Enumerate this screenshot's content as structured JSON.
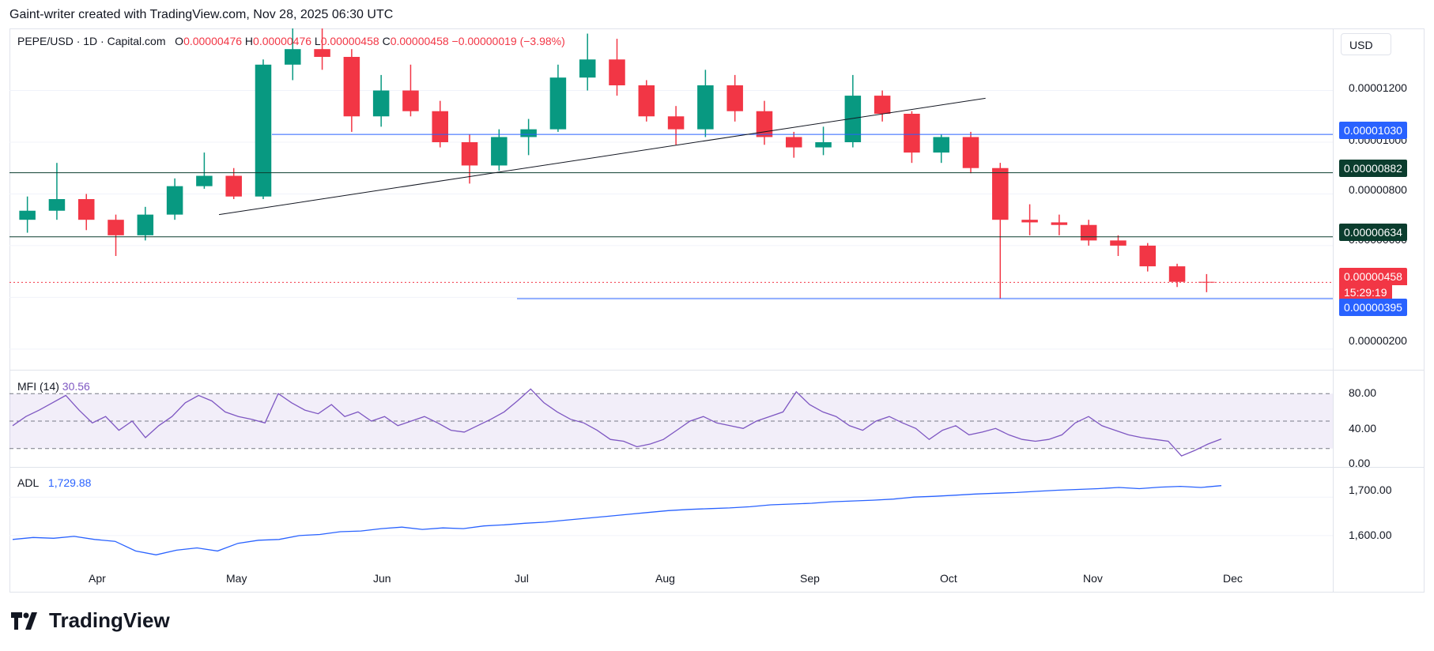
{
  "header": {
    "attribution": "Gaint-writer created with TradingView.com, Nov 28, 2025 06:30 UTC"
  },
  "symbol_line": {
    "symbol": "PEPE/USD · 1D · Capital.com",
    "o_label": "O",
    "o_value": "0.00000476",
    "h_label": "H",
    "h_value": "0.00000476",
    "l_label": "L",
    "l_value": "0.00000458",
    "c_label": "C",
    "c_value": "0.00000458",
    "change": "−0.00000019 (−3.98%)"
  },
  "currency_button": "USD",
  "price_axis": [
    "0.00001200",
    "0.00001000",
    "0.00000800",
    "0.00000600",
    "0.00000200"
  ],
  "price_tags": [
    {
      "label": "0.00001030",
      "color": "#2962ff"
    },
    {
      "label": "0.00000882",
      "color": "#0b3d2e"
    },
    {
      "label": "0.00000634",
      "color": "#0b3d2e"
    },
    {
      "label": "0.00000458",
      "color": "#f23645"
    },
    {
      "label": "15:29:19",
      "color": "#f23645"
    },
    {
      "label": "0.00000395",
      "color": "#2962ff"
    }
  ],
  "mfi": {
    "name": "MFI (14)",
    "value": "30.56",
    "axis": [
      "80.00",
      "40.00",
      "0.00"
    ],
    "color": "#7e57c2"
  },
  "adl": {
    "name": "ADL",
    "value": "1,729.88",
    "axis": [
      "1,700.00",
      "1,600.00"
    ],
    "color": "#2962ff"
  },
  "time_axis": [
    "Apr",
    "May",
    "Jun",
    "Jul",
    "Aug",
    "Sep",
    "Oct",
    "Nov",
    "Dec"
  ],
  "brand": {
    "name": "TradingView"
  },
  "colors": {
    "up": "#089981",
    "down": "#f23645",
    "grid": "#f0f3fa"
  },
  "chart_data": {
    "type": "candlestick",
    "symbol": "PEPE/USD",
    "interval": "1D",
    "x_range": [
      "2025-03-13",
      "2025-11-28"
    ],
    "ylim": [
      1.2e-06,
      1.44e-05
    ],
    "candles_weekly_ohlc": [
      [
        7e-06,
        7.9e-06,
        6.5e-06,
        7.35e-06
      ],
      [
        7.35e-06,
        9.2e-06,
        7e-06,
        7.8e-06
      ],
      [
        7.8e-06,
        8e-06,
        6.6e-06,
        7e-06
      ],
      [
        7e-06,
        7.2e-06,
        5.6e-06,
        6.4e-06
      ],
      [
        6.4e-06,
        7.5e-06,
        6.2e-06,
        7.2e-06
      ],
      [
        7.2e-06,
        8.6e-06,
        7e-06,
        8.3e-06
      ],
      [
        8.3e-06,
        9.6e-06,
        8.2e-06,
        8.7e-06
      ],
      [
        8.7e-06,
        9e-06,
        7.8e-06,
        7.9e-06
      ],
      [
        7.9e-06,
        1.32e-05,
        7.8e-06,
        1.3e-05
      ],
      [
        1.3e-05,
        1.44e-05,
        1.24e-05,
        1.36e-05
      ],
      [
        1.36e-05,
        1.44e-05,
        1.28e-05,
        1.33e-05
      ],
      [
        1.33e-05,
        1.36e-05,
        1.04e-05,
        1.1e-05
      ],
      [
        1.1e-05,
        1.26e-05,
        1.06e-05,
        1.2e-05
      ],
      [
        1.2e-05,
        1.3e-05,
        1.1e-05,
        1.12e-05
      ],
      [
        1.12e-05,
        1.16e-05,
        9.8e-06,
        1e-05
      ],
      [
        1e-05,
        1.03e-05,
        8.4e-06,
        9.1e-06
      ],
      [
        9.1e-06,
        1.05e-05,
        8.9e-06,
        1.02e-05
      ],
      [
        1.02e-05,
        1.09e-05,
        9.5e-06,
        1.05e-05
      ],
      [
        1.05e-05,
        1.3e-05,
        1.04e-05,
        1.25e-05
      ],
      [
        1.25e-05,
        1.42e-05,
        1.2e-05,
        1.32e-05
      ],
      [
        1.32e-05,
        1.4e-05,
        1.18e-05,
        1.22e-05
      ],
      [
        1.22e-05,
        1.24e-05,
        1.08e-05,
        1.1e-05
      ],
      [
        1.1e-05,
        1.14e-05,
        9.9e-06,
        1.05e-05
      ],
      [
        1.05e-05,
        1.28e-05,
        1.02e-05,
        1.22e-05
      ],
      [
        1.22e-05,
        1.26e-05,
        1.08e-05,
        1.12e-05
      ],
      [
        1.12e-05,
        1.16e-05,
        9.9e-06,
        1.02e-05
      ],
      [
        1.02e-05,
        1.04e-05,
        9.4e-06,
        9.8e-06
      ],
      [
        9.8e-06,
        1.06e-05,
        9.5e-06,
        1e-05
      ],
      [
        1e-05,
        1.26e-05,
        9.8e-06,
        1.18e-05
      ],
      [
        1.18e-05,
        1.2e-05,
        1.08e-05,
        1.11e-05
      ],
      [
        1.11e-05,
        1.12e-05,
        9.2e-06,
        9.6e-06
      ],
      [
        9.6e-06,
        1.03e-05,
        9.2e-06,
        1.02e-05
      ],
      [
        1.02e-05,
        1.04e-05,
        8.8e-06,
        9e-06
      ],
      [
        9e-06,
        9.2e-06,
        3.95e-06,
        7e-06
      ],
      [
        7e-06,
        7.6e-06,
        6.4e-06,
        6.9e-06
      ],
      [
        6.9e-06,
        7.2e-06,
        6.4e-06,
        6.8e-06
      ],
      [
        6.8e-06,
        7e-06,
        6e-06,
        6.2e-06
      ],
      [
        6.2e-06,
        6.4e-06,
        5.6e-06,
        6e-06
      ],
      [
        6e-06,
        6.1e-06,
        5e-06,
        5.2e-06
      ],
      [
        5.2e-06,
        5.3e-06,
        4.4e-06,
        4.6e-06
      ],
      [
        4.6e-06,
        4.9e-06,
        4.2e-06,
        4.58e-06
      ]
    ],
    "horizontal_levels": [
      1.03e-05,
      8.82e-06,
      6.34e-06,
      3.95e-06
    ],
    "current_price": 4.58e-06,
    "mfi_values": [
      45,
      55,
      62,
      70,
      78,
      62,
      48,
      55,
      40,
      50,
      32,
      45,
      55,
      70,
      78,
      72,
      60,
      55,
      52,
      48,
      80,
      70,
      62,
      58,
      68,
      55,
      60,
      50,
      55,
      45,
      50,
      55,
      48,
      40,
      38,
      45,
      52,
      60,
      72,
      85,
      70,
      60,
      52,
      48,
      40,
      30,
      28,
      22,
      25,
      30,
      40,
      50,
      55,
      48,
      45,
      42,
      50,
      55,
      60,
      82,
      68,
      60,
      55,
      45,
      40,
      50,
      55,
      48,
      42,
      30,
      40,
      45,
      35,
      38,
      42,
      35,
      30,
      28,
      30,
      35,
      48,
      55,
      45,
      40,
      35,
      32,
      30,
      28,
      12,
      18,
      25,
      30.56
    ],
    "mfi_levels": [
      80,
      50,
      20
    ],
    "mfi_ylim": [
      0,
      100
    ],
    "adl_values": [
      1590,
      1595,
      1593,
      1598,
      1590,
      1585,
      1560,
      1550,
      1562,
      1568,
      1560,
      1580,
      1588,
      1590,
      1600,
      1603,
      1610,
      1612,
      1618,
      1622,
      1616,
      1620,
      1618,
      1625,
      1628,
      1632,
      1635,
      1640,
      1645,
      1650,
      1655,
      1660,
      1665,
      1668,
      1670,
      1672,
      1675,
      1680,
      1682,
      1684,
      1688,
      1690,
      1692,
      1695,
      1700,
      1702,
      1705,
      1708,
      1710,
      1712,
      1715,
      1718,
      1720,
      1722,
      1725,
      1722,
      1726,
      1728,
      1725,
      1729.88
    ],
    "adl_ylim": [
      1530,
      1760
    ]
  }
}
